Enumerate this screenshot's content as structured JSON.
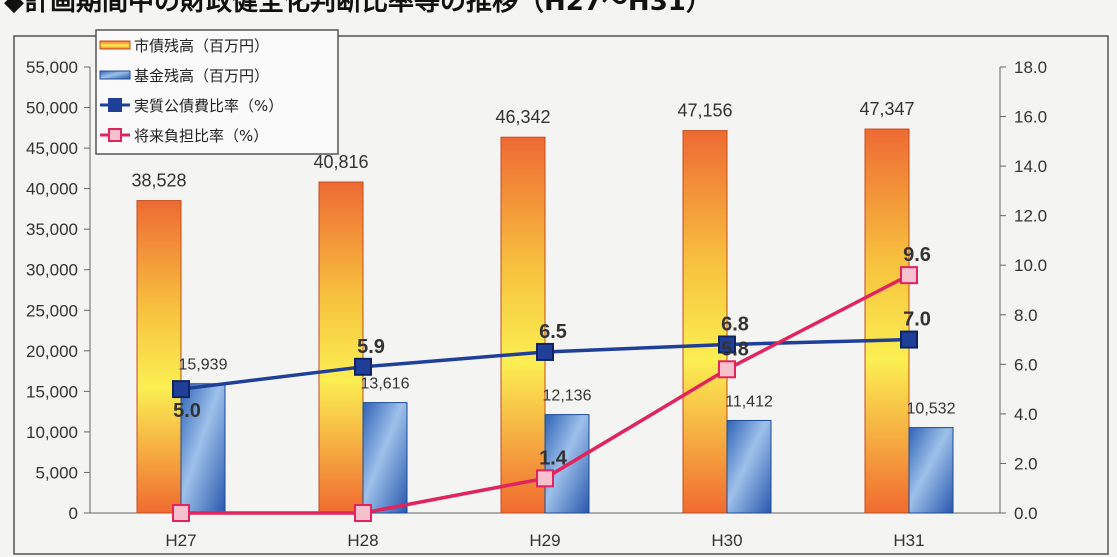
{
  "title": "◆計画期間中の財政健全化判断比率等の推移（H27～H31）",
  "chart_data": {
    "type": "bar",
    "categories": [
      "H27",
      "H28",
      "H29",
      "H30",
      "H31"
    ],
    "bar_series": [
      {
        "name": "市債残高（百万円）",
        "values": [
          38528,
          40816,
          46342,
          47156,
          47347
        ],
        "labels": [
          "38,528",
          "40,816",
          "46,342",
          "47,156",
          "47,347"
        ]
      },
      {
        "name": "基金残高（百万円）",
        "values": [
          15939,
          13616,
          12136,
          11412,
          10532
        ],
        "labels": [
          "15,939",
          "13,616",
          "12,136",
          "11,412",
          "10,532"
        ]
      }
    ],
    "line_series": [
      {
        "name": "実質公債費比率（%）",
        "values": [
          5.0,
          5.9,
          6.5,
          6.8,
          7.0
        ],
        "labels": [
          "5.0",
          "5.9",
          "6.5",
          "6.8",
          "7.0"
        ],
        "color": "#1f3f99"
      },
      {
        "name": "将来負担比率（%）",
        "values": [
          0,
          0,
          1.4,
          5.8,
          9.6
        ],
        "labels": [
          "",
          "",
          "1.4",
          "5.8",
          "9.6"
        ],
        "color": "#e0245e"
      }
    ],
    "y_left": {
      "min": 0,
      "max": 55000,
      "ticks": [
        "0",
        "5,000",
        "10,000",
        "15,000",
        "20,000",
        "25,000",
        "30,000",
        "35,000",
        "40,000",
        "45,000",
        "50,000",
        "55,000"
      ]
    },
    "y_right": {
      "min": 0,
      "max": 18,
      "ticks": [
        "0.0",
        "2.0",
        "4.0",
        "6.0",
        "8.0",
        "10.0",
        "12.0",
        "14.0",
        "16.0",
        "18.0"
      ]
    },
    "legend_position": "top-left"
  }
}
